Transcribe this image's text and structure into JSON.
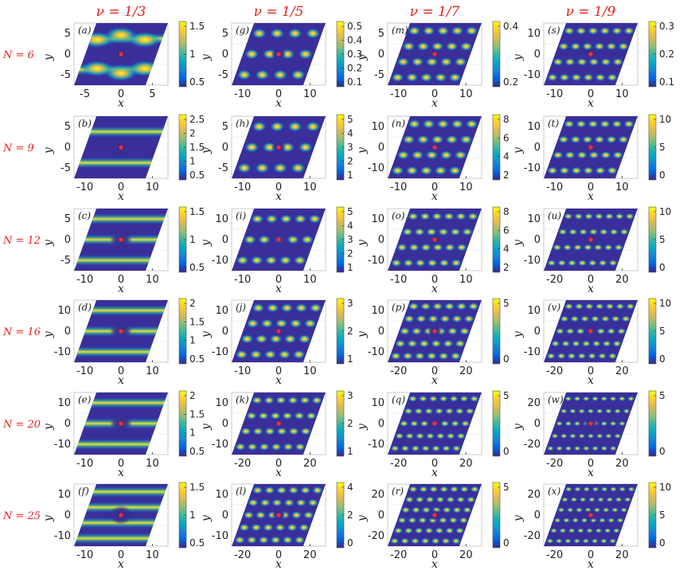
{
  "colors": {
    "label_red": "#e8211c",
    "colormap": [
      "#352a87",
      "#0363e1",
      "#1485d4",
      "#06a7c6",
      "#38b99e",
      "#92bf73",
      "#d9ba56",
      "#fcce2e",
      "#f9fb0e"
    ],
    "center_dot": "#ff2a2a"
  },
  "chart_data": {
    "type": "heatmap",
    "columns": [
      "ν = 1/3",
      "ν = 1/5",
      "ν = 1/7",
      "ν = 1/9"
    ],
    "rows": [
      "N = 6",
      "N = 9",
      "N = 12",
      "N = 16",
      "N = 20",
      "N = 25"
    ],
    "xlabel": "x",
    "ylabel": "y",
    "panels": [
      {
        "label": "(a)",
        "xticks": [
          "-5",
          "0",
          "5"
        ],
        "yticks": [
          "5",
          "0",
          "-5"
        ],
        "cbticks": [
          "1.5",
          "1",
          "0.5"
        ]
      },
      {
        "label": "(g)",
        "xticks": [
          "-10",
          "0",
          "10"
        ],
        "yticks": [
          "5",
          "0",
          "-5"
        ],
        "cbticks": [
          "0.5",
          "0.4",
          "0.3",
          "0.2",
          "0.1"
        ]
      },
      {
        "label": "(m)",
        "xticks": [
          "-10",
          "0",
          "10"
        ],
        "yticks": [
          "5",
          "0",
          "-5"
        ],
        "cbticks": [
          "0.4",
          "0.2"
        ]
      },
      {
        "label": "(s)",
        "xticks": [
          "-10",
          "0",
          "10"
        ],
        "yticks": [
          "10",
          "0",
          "-10"
        ],
        "cbticks": [
          "0.3",
          "0.2",
          "0.1"
        ]
      },
      {
        "label": "(b)",
        "xticks": [
          "-10",
          "0",
          "10"
        ],
        "yticks": [
          "5",
          "0",
          "-5"
        ],
        "cbticks": [
          "2.5",
          "2",
          "1.5",
          "1",
          "0.5"
        ]
      },
      {
        "label": "(h)",
        "xticks": [
          "-10",
          "0",
          "10"
        ],
        "yticks": [
          "5",
          "0",
          "-5"
        ],
        "cbticks": [
          "5",
          "4",
          "3",
          "2",
          "1"
        ]
      },
      {
        "label": "(n)",
        "xticks": [
          "-10",
          "0",
          "10"
        ],
        "yticks": [
          "10",
          "0",
          "-10"
        ],
        "cbticks": [
          "8",
          "6",
          "4",
          "2"
        ]
      },
      {
        "label": "(t)",
        "xticks": [
          "-10",
          "0",
          "10"
        ],
        "yticks": [
          "10",
          "0",
          "-10"
        ],
        "cbticks": [
          "10",
          "5",
          "0"
        ]
      },
      {
        "label": "(c)",
        "xticks": [
          "-10",
          "0",
          "10"
        ],
        "yticks": [
          "5",
          "0",
          "-5"
        ],
        "cbticks": [
          "1.5",
          "1",
          "0.5"
        ]
      },
      {
        "label": "(i)",
        "xticks": [
          "-10",
          "0",
          "10"
        ],
        "yticks": [
          "10",
          "0",
          "-10"
        ],
        "cbticks": [
          "5",
          "4",
          "3",
          "2",
          "1"
        ]
      },
      {
        "label": "(o)",
        "xticks": [
          "-10",
          "0",
          "10"
        ],
        "yticks": [
          "10",
          "0",
          "-10"
        ],
        "cbticks": [
          "8",
          "6",
          "4",
          "2"
        ]
      },
      {
        "label": "(u)",
        "xticks": [
          "-20",
          "0",
          "20"
        ],
        "yticks": [
          "10",
          "0",
          "-10"
        ],
        "cbticks": [
          "10",
          "5",
          "0"
        ]
      },
      {
        "label": "(d)",
        "xticks": [
          "-10",
          "0",
          "10"
        ],
        "yticks": [
          "10",
          "0",
          "-10"
        ],
        "cbticks": [
          "2",
          "1.5",
          "1",
          "0.5"
        ]
      },
      {
        "label": "(j)",
        "xticks": [
          "-10",
          "0",
          "10"
        ],
        "yticks": [
          "10",
          "0",
          "-10"
        ],
        "cbticks": [
          "3",
          "2",
          "1"
        ]
      },
      {
        "label": "(p)",
        "xticks": [
          "-20",
          "0",
          "20"
        ],
        "yticks": [
          "10",
          "0",
          "-10"
        ],
        "cbticks": [
          "5",
          "0"
        ]
      },
      {
        "label": "(v)",
        "xticks": [
          "-20",
          "0",
          "20"
        ],
        "yticks": [
          "10",
          "0",
          "-10"
        ],
        "cbticks": [
          "10",
          "5",
          "0"
        ]
      },
      {
        "label": "(e)",
        "xticks": [
          "-10",
          "0",
          "10"
        ],
        "yticks": [
          "10",
          "0",
          "-10"
        ],
        "cbticks": [
          "2",
          "1.5",
          "1",
          "0.5"
        ]
      },
      {
        "label": "(k)",
        "xticks": [
          "-20",
          "0",
          "20"
        ],
        "yticks": [
          "10",
          "0",
          "-10"
        ],
        "cbticks": [
          "3",
          "2",
          "1"
        ]
      },
      {
        "label": "(q)",
        "xticks": [
          "-20",
          "0",
          "20"
        ],
        "yticks": [
          "10",
          "0",
          "-10"
        ],
        "cbticks": [
          "5",
          "0"
        ]
      },
      {
        "label": "(w)",
        "xticks": [
          "-20",
          "0",
          "20"
        ],
        "yticks": [
          "20",
          "0",
          "-20"
        ],
        "cbticks": [
          "5",
          "0"
        ]
      },
      {
        "label": "(f)",
        "xticks": [
          "-10",
          "0",
          "10"
        ],
        "yticks": [
          "10",
          "0",
          "-10"
        ],
        "cbticks": [
          "1.5",
          "1",
          "0.5"
        ]
      },
      {
        "label": "(l)",
        "xticks": [
          "-20",
          "0",
          "20"
        ],
        "yticks": [
          "10",
          "0",
          "-10"
        ],
        "cbticks": [
          "4",
          "2",
          "0"
        ]
      },
      {
        "label": "(r)",
        "xticks": [
          "-20",
          "0",
          "20"
        ],
        "yticks": [
          "20",
          "0",
          "-20"
        ],
        "cbticks": [
          "5",
          "0"
        ]
      },
      {
        "label": "(x)",
        "xticks": [
          "-20",
          "0",
          "20"
        ],
        "yticks": [
          "20",
          "0",
          "-20"
        ],
        "cbticks": [
          "10",
          "5",
          "0"
        ]
      }
    ]
  }
}
